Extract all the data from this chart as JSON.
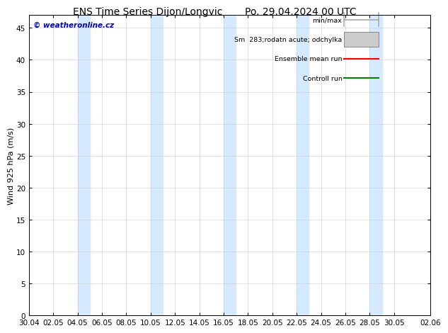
{
  "title_left": "ENS Time Series Dijon/Longvic",
  "title_right": "Po. 29.04.2024 00 UTC",
  "ylabel": "Wind 925 hPa (m/s)",
  "watermark": "© weatheronline.cz",
  "watermark_color": "#0000cc",
  "ylim": [
    0,
    47
  ],
  "yticks": [
    0,
    5,
    10,
    15,
    20,
    25,
    30,
    35,
    40,
    45
  ],
  "xtick_labels": [
    "30.04",
    "02.05",
    "04.05",
    "06.05",
    "08.05",
    "10.05",
    "12.05",
    "14.05",
    "16.05",
    "18.05",
    "20.05",
    "22.05",
    "24.05",
    "26.05",
    "28.05",
    "30.05",
    "02.06"
  ],
  "xtick_positions": [
    0,
    2,
    4,
    6,
    8,
    10,
    12,
    14,
    16,
    18,
    20,
    22,
    24,
    26,
    28,
    30,
    33
  ],
  "shaded_bands": [
    [
      4,
      5
    ],
    [
      10,
      11
    ],
    [
      16,
      17
    ],
    [
      22,
      23
    ],
    [
      28,
      29
    ]
  ],
  "shade_color": "#d6eaff",
  "background_color": "#ffffff",
  "plot_bg_color": "#ffffff",
  "grid_color": "#cccccc",
  "legend_items": [
    {
      "label": "min/max",
      "color": "#aaaaaa",
      "style": "minmax"
    },
    {
      "label": "Sm  283;rodatn acute; odchylka",
      "color": "#cccccc",
      "style": "band"
    },
    {
      "label": "Ensemble mean run",
      "color": "#ff0000",
      "style": "line"
    },
    {
      "label": "Controll run",
      "color": "#008000",
      "style": "line"
    }
  ],
  "border_color": "#000000",
  "tick_color": "#000000",
  "title_fontsize": 10,
  "label_fontsize": 8,
  "tick_fontsize": 7.5
}
